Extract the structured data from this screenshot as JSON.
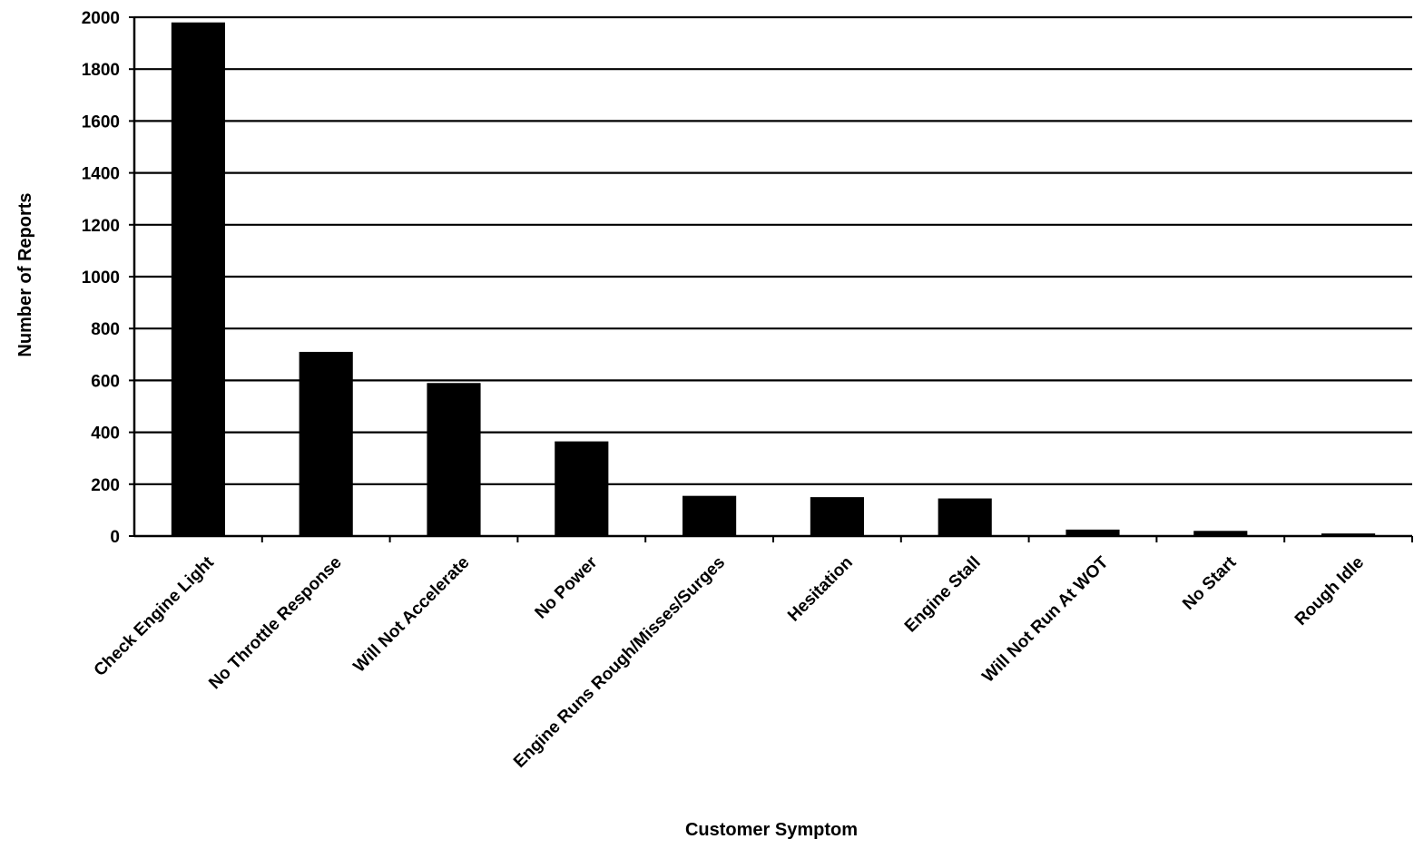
{
  "chart_data": {
    "type": "bar",
    "title": "",
    "xlabel": "Customer Symptom",
    "ylabel": "Number of Reports",
    "categories": [
      "Check Engine Light",
      "No Throttle Response",
      "Will Not Accelerate",
      "No Power",
      "Engine Runs Rough/Misses/Surges",
      "Hesitation",
      "Engine Stall",
      "Will Not Run At WOT",
      "No Start",
      "Rough Idle"
    ],
    "values": [
      1980,
      710,
      590,
      365,
      155,
      150,
      145,
      25,
      20,
      10
    ],
    "ylim": [
      0,
      2000
    ],
    "yticks": [
      0,
      200,
      400,
      600,
      800,
      1000,
      1200,
      1400,
      1600,
      1800,
      2000
    ],
    "grid": true,
    "legend": "none",
    "colors": {
      "bar": "#000000",
      "grid": "#000000",
      "background": "#ffffff"
    }
  }
}
